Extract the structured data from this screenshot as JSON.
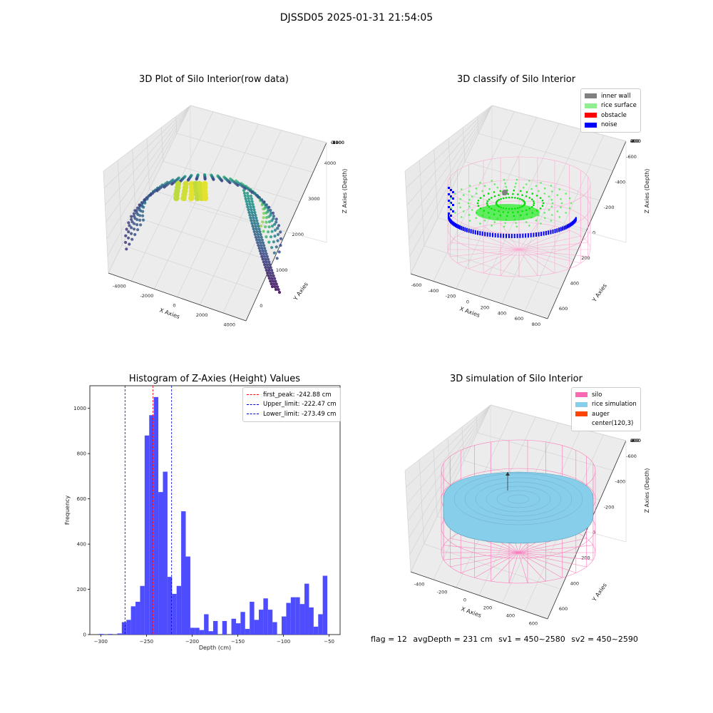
{
  "figure": {
    "suptitle": "DJSSD05 2025-01-31 21:54:05",
    "status": {
      "flag": "flag = 12",
      "avg_depth": "avgDepth = 231 cm",
      "sv1": "sv1 = 450~2580",
      "sv2": "sv2 = 450~2590"
    }
  },
  "chart_data": [
    {
      "type": "scatter",
      "projection": "3d",
      "title": "3D Plot of Silo Interior(row data)",
      "xlabel": "X Axies",
      "ylabel": "Y Axies",
      "zlabel": "Z Axies (Depth)",
      "x_ticks": [
        "-4000",
        "-2000",
        "0",
        "2000",
        "4000"
      ],
      "y_ticks": [
        "0",
        "1000",
        "2000",
        "3000",
        "4000"
      ],
      "z_ticks": [
        "0",
        "-200",
        "-400",
        "-600",
        "-800",
        "-1000",
        "-1200",
        "-1400"
      ],
      "colormap": "viridis"
    },
    {
      "type": "scatter",
      "projection": "3d",
      "title": "3D classify of Silo Interior",
      "xlabel": "X Axies",
      "ylabel": "Y Axies",
      "zlabel": "Z Axies (Depth)",
      "x_ticks": [
        "-600",
        "-400",
        "-200",
        "0",
        "200",
        "400",
        "600",
        "800"
      ],
      "y_ticks": [
        "600",
        "400",
        "200",
        "0",
        "-200",
        "-400",
        "-600"
      ],
      "z_ticks": [
        "400",
        "200",
        "0",
        "-200",
        "-400",
        "-600",
        "-800"
      ],
      "legend": [
        {
          "label": "inner wall",
          "color": "#808080"
        },
        {
          "label": "rice surface",
          "color": "#90ee90"
        },
        {
          "label": "obstacle",
          "color": "#ff0000"
        },
        {
          "label": "noise",
          "color": "#0000ff"
        }
      ],
      "legend_position": "top-right"
    },
    {
      "type": "bar",
      "title": "Histogram of Z-Axies (Height) Values",
      "xlabel": "Depth (cm)",
      "ylabel": "Frequency",
      "xlim": [
        -312,
        -38
      ],
      "ylim": [
        0,
        1100
      ],
      "x_ticks": [
        -300,
        -250,
        -200,
        -150,
        -100,
        -50
      ],
      "y_ticks": [
        0,
        200,
        400,
        600,
        800,
        1000
      ],
      "bar_color": "#4d4dff",
      "bins": [
        [
          -302,
          -297,
          3
        ],
        [
          -297,
          -292,
          0
        ],
        [
          -292,
          -287,
          3
        ],
        [
          -287,
          -282,
          0
        ],
        [
          -282,
          -277,
          5
        ],
        [
          -277,
          -272,
          55
        ],
        [
          -272,
          -267,
          65
        ],
        [
          -267,
          -262,
          125
        ],
        [
          -262,
          -257,
          145
        ],
        [
          -257,
          -252,
          215
        ],
        [
          -252,
          -247,
          880
        ],
        [
          -247,
          -242,
          970
        ],
        [
          -242,
          -237,
          1050
        ],
        [
          -237,
          -232,
          630
        ],
        [
          -232,
          -227,
          720
        ],
        [
          -227,
          -222,
          255
        ],
        [
          -222,
          -217,
          180
        ],
        [
          -217,
          -212,
          215
        ],
        [
          -212,
          -207,
          545
        ],
        [
          -207,
          -202,
          345
        ],
        [
          -202,
          -197,
          30
        ],
        [
          -197,
          -192,
          30
        ],
        [
          -192,
          -187,
          20
        ],
        [
          -187,
          -182,
          90
        ],
        [
          -182,
          -177,
          15
        ],
        [
          -177,
          -172,
          60
        ],
        [
          -172,
          -167,
          0
        ],
        [
          -167,
          -162,
          60
        ],
        [
          -162,
          -157,
          0
        ],
        [
          -157,
          -152,
          70
        ],
        [
          -152,
          -147,
          50
        ],
        [
          -147,
          -142,
          100
        ],
        [
          -142,
          -137,
          25
        ],
        [
          -137,
          -132,
          145
        ],
        [
          -132,
          -127,
          65
        ],
        [
          -127,
          -122,
          110
        ],
        [
          -122,
          -117,
          160
        ],
        [
          -117,
          -112,
          110
        ],
        [
          -112,
          -107,
          55
        ],
        [
          -107,
          -102,
          0
        ],
        [
          -102,
          -97,
          80
        ],
        [
          -97,
          -92,
          140
        ],
        [
          -92,
          -87,
          165
        ],
        [
          -87,
          -82,
          165
        ],
        [
          -82,
          -77,
          135
        ],
        [
          -77,
          -72,
          225
        ],
        [
          -72,
          -67,
          120
        ],
        [
          -67,
          -62,
          35
        ],
        [
          -62,
          -57,
          90
        ],
        [
          -57,
          -52,
          260
        ]
      ],
      "vlines": [
        {
          "label": "first_peak: -242.88 cm",
          "x": -242.88,
          "color": "#ff0000"
        },
        {
          "label": "Upper_limit: -222.47 cm",
          "x": -222.47,
          "color": "#0000cc"
        },
        {
          "label": "Lower_limit: -273.49 cm",
          "x": -273.49,
          "color": "#0000cc"
        }
      ],
      "legend_position": "top-right"
    },
    {
      "type": "scatter",
      "projection": "3d",
      "title": "3D simulation of Silo Interior",
      "xlabel": "X Axies",
      "ylabel": "Y Axies",
      "zlabel": "Z Axies (Depth)",
      "x_ticks": [
        "-400",
        "-200",
        "0",
        "200",
        "400",
        "600"
      ],
      "y_ticks": [
        "600",
        "400",
        "200",
        "0",
        "-200",
        "-400",
        "-600"
      ],
      "z_ticks": [
        "400",
        "200",
        "0",
        "-200",
        "-400",
        "-600",
        "-800"
      ],
      "legend": [
        {
          "label": "silo",
          "color": "#ff69b4"
        },
        {
          "label": "rice simulation",
          "color": "#87ceeb"
        },
        {
          "label": "auger",
          "color": "#ff4500"
        },
        {
          "label": "center(120,3)",
          "color": "#ffffff"
        }
      ],
      "legend_position": "top-right"
    }
  ]
}
